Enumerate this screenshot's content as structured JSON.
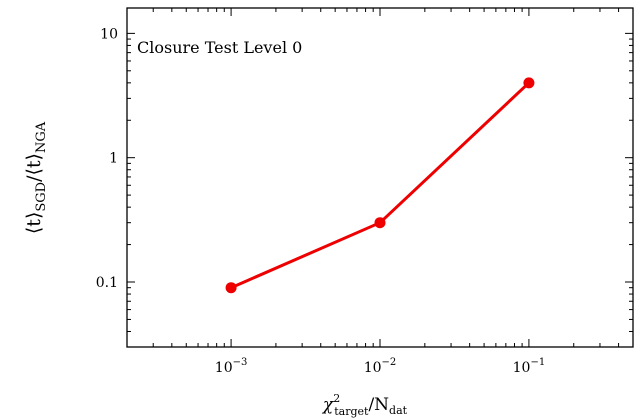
{
  "chart_data": {
    "type": "line",
    "title": "",
    "annotation": "Closure Test Level 0",
    "xlabel": {
      "main": "χ",
      "sup": "2",
      "sub": "target",
      "tail": "/N",
      "tail_sub": "dat"
    },
    "ylabel": {
      "part1": "⟨t⟩",
      "sub1": "SGD",
      "part2": "/⟨t⟩",
      "sub2": "NGA"
    },
    "xscale": "log",
    "yscale": "log",
    "xlim": [
      0.0002,
      0.5
    ],
    "ylim": [
      0.03,
      16
    ],
    "xticks": [
      {
        "value": 0.001,
        "base": "10",
        "exp": "−3"
      },
      {
        "value": 0.01,
        "base": "10",
        "exp": "−2"
      },
      {
        "value": 0.1,
        "base": "10",
        "exp": "−1"
      }
    ],
    "yticks": [
      {
        "value": 0.1,
        "label": "0.1"
      },
      {
        "value": 1,
        "label": "1"
      },
      {
        "value": 10,
        "label": "10"
      }
    ],
    "grid": false,
    "series": [
      {
        "color": "#ee0000",
        "x": [
          0.001,
          0.01,
          0.1
        ],
        "y": [
          0.09,
          0.3,
          4.0
        ]
      }
    ]
  }
}
